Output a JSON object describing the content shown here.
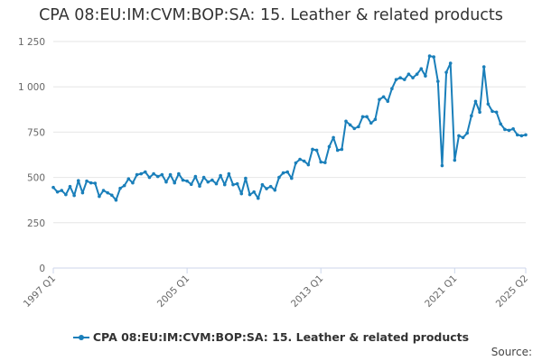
{
  "chart_data": {
    "type": "line",
    "title": "CPA 08:EU:IM:CVM:BOP:SA: 15. Leather & related products",
    "xlabel": "",
    "ylabel": "",
    "ylim": [
      0,
      1250
    ],
    "y_ticks": [
      0,
      250,
      500,
      750,
      1000,
      1250
    ],
    "y_tick_labels": [
      "0",
      "250",
      "500",
      "750",
      "1 000",
      "1 250"
    ],
    "x_tick_labels": [
      "1997 Q1",
      "2005 Q1",
      "2013 Q1",
      "2021 Q1",
      "2025 Q2"
    ],
    "x_tick_index": [
      0,
      32,
      64,
      96,
      113
    ],
    "grid": true,
    "legend_position": "bottom",
    "series": [
      {
        "name": "CPA 08:EU:IM:CVM:BOP:SA: 15. Leather & related products",
        "color": "#1a7fba",
        "x": [
          "1997 Q1",
          "1997 Q2",
          "1997 Q3",
          "1997 Q4",
          "1998 Q1",
          "1998 Q2",
          "1998 Q3",
          "1998 Q4",
          "1999 Q1",
          "1999 Q2",
          "1999 Q3",
          "1999 Q4",
          "2000 Q1",
          "2000 Q2",
          "2000 Q3",
          "2000 Q4",
          "2001 Q1",
          "2001 Q2",
          "2001 Q3",
          "2001 Q4",
          "2002 Q1",
          "2002 Q2",
          "2002 Q3",
          "2002 Q4",
          "2003 Q1",
          "2003 Q2",
          "2003 Q3",
          "2003 Q4",
          "2004 Q1",
          "2004 Q2",
          "2004 Q3",
          "2004 Q4",
          "2005 Q1",
          "2005 Q2",
          "2005 Q3",
          "2005 Q4",
          "2006 Q1",
          "2006 Q2",
          "2006 Q3",
          "2006 Q4",
          "2007 Q1",
          "2007 Q2",
          "2007 Q3",
          "2007 Q4",
          "2008 Q1",
          "2008 Q2",
          "2008 Q3",
          "2008 Q4",
          "2009 Q1",
          "2009 Q2",
          "2009 Q3",
          "2009 Q4",
          "2010 Q1",
          "2010 Q2",
          "2010 Q3",
          "2010 Q4",
          "2011 Q1",
          "2011 Q2",
          "2011 Q3",
          "2011 Q4",
          "2012 Q1",
          "2012 Q2",
          "2012 Q3",
          "2012 Q4",
          "2013 Q1",
          "2013 Q2",
          "2013 Q3",
          "2013 Q4",
          "2014 Q1",
          "2014 Q2",
          "2014 Q3",
          "2014 Q4",
          "2015 Q1",
          "2015 Q2",
          "2015 Q3",
          "2015 Q4",
          "2016 Q1",
          "2016 Q2",
          "2016 Q3",
          "2016 Q4",
          "2017 Q1",
          "2017 Q2",
          "2017 Q3",
          "2017 Q4",
          "2018 Q1",
          "2018 Q2",
          "2018 Q3",
          "2018 Q4",
          "2019 Q1",
          "2019 Q2",
          "2019 Q3",
          "2019 Q4",
          "2020 Q1",
          "2020 Q2",
          "2020 Q3",
          "2020 Q4",
          "2021 Q1",
          "2021 Q2",
          "2021 Q3",
          "2021 Q4",
          "2022 Q1",
          "2022 Q2",
          "2022 Q3",
          "2022 Q4",
          "2023 Q1",
          "2023 Q2",
          "2023 Q3",
          "2023 Q4",
          "2024 Q1",
          "2024 Q2",
          "2024 Q3",
          "2024 Q4",
          "2025 Q1",
          "2025 Q2"
        ],
        "values": [
          445,
          420,
          428,
          405,
          450,
          400,
          482,
          415,
          480,
          470,
          468,
          395,
          428,
          415,
          402,
          375,
          440,
          455,
          492,
          470,
          515,
          520,
          530,
          500,
          520,
          505,
          515,
          475,
          515,
          470,
          520,
          485,
          480,
          462,
          505,
          452,
          500,
          475,
          485,
          465,
          510,
          460,
          520,
          460,
          465,
          410,
          495,
          405,
          420,
          385,
          460,
          438,
          450,
          430,
          500,
          525,
          530,
          495,
          580,
          600,
          590,
          570,
          655,
          650,
          585,
          582,
          670,
          720,
          650,
          655,
          810,
          790,
          770,
          780,
          835,
          835,
          800,
          820,
          930,
          945,
          920,
          990,
          1040,
          1050,
          1040,
          1070,
          1050,
          1070,
          1100,
          1060,
          1170,
          1165,
          1030,
          565,
          1080,
          1130,
          595,
          730,
          720,
          745,
          840,
          920,
          860,
          1110,
          905,
          865,
          860,
          795,
          765,
          760,
          768,
          735,
          730,
          735
        ]
      }
    ]
  },
  "legend": {
    "label": "CPA 08:EU:IM:CVM:BOP:SA: 15. Leather & related products"
  },
  "source_label": "Source:"
}
